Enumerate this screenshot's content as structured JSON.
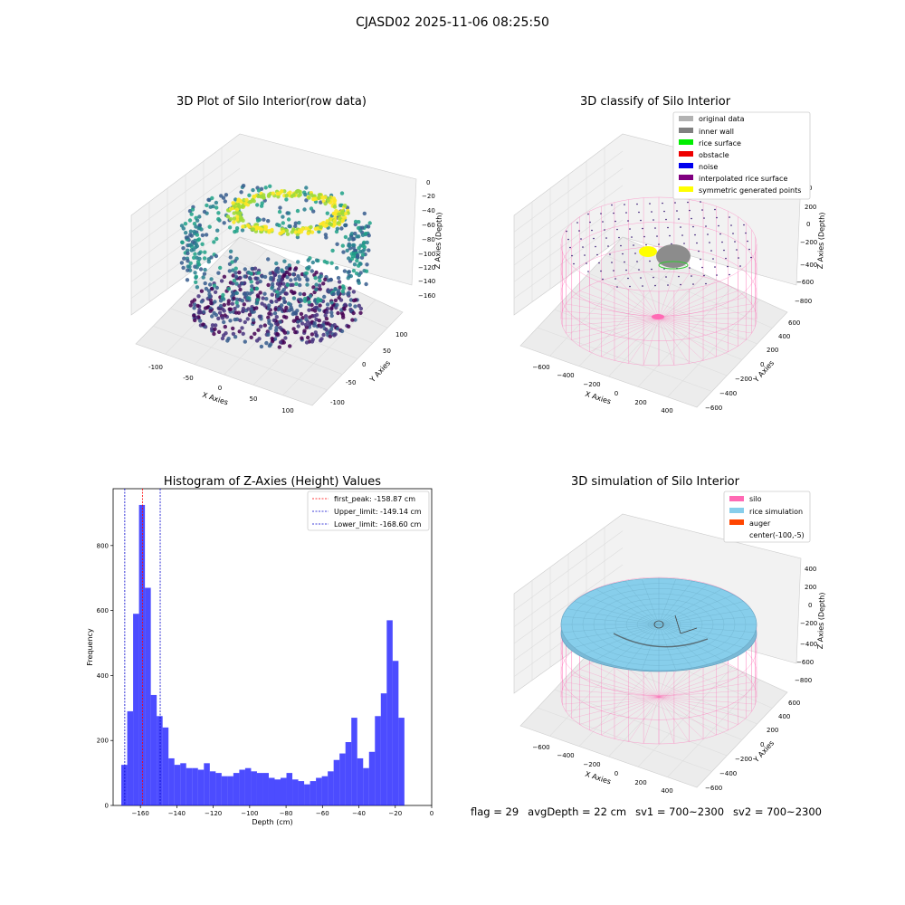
{
  "figure": {
    "suptitle": "CJASD02 2025-11-06 08:25:50"
  },
  "chart_data": [
    {
      "type": "scatter",
      "title": "3D Plot of Silo Interior(row data)",
      "xlabel": "X Axies",
      "ylabel": "Y Axies",
      "zlabel": "Z Axies (Depth)",
      "x_ticks": [
        "-100",
        "-50",
        "0",
        "50",
        "100"
      ],
      "y_ticks": [
        "-100",
        "-50",
        "0",
        "50",
        "100"
      ],
      "z_ticks": [
        "0",
        "−20",
        "−40",
        "−60",
        "−80",
        "−100",
        "−120",
        "−140",
        "−160"
      ],
      "colormap": "viridis"
    },
    {
      "type": "scatter",
      "title": "3D classify of Silo Interior",
      "xlabel": "X Axies",
      "ylabel": "Y Axies",
      "zlabel": "Z Axies (Depth)",
      "x_ticks": [
        "−600",
        "−400",
        "−200",
        "0",
        "200",
        "400"
      ],
      "y_ticks": [
        "−600",
        "−400",
        "−200",
        "0",
        "200",
        "400",
        "600"
      ],
      "z_ticks": [
        "200",
        "0",
        "−200",
        "−400",
        "−600",
        "−800"
      ],
      "z_top_tick": "0",
      "legend": [
        {
          "label": "original data",
          "color": "#b2b2b2"
        },
        {
          "label": "inner wall",
          "color": "#808080"
        },
        {
          "label": "rice surface",
          "color": "#00ee00"
        },
        {
          "label": "obstacle",
          "color": "#ee0000"
        },
        {
          "label": "noise",
          "color": "#0000ee"
        },
        {
          "label": "interpolated rice surface",
          "color": "#800080"
        },
        {
          "label": "symmetric generated points",
          "color": "#ffff00"
        }
      ]
    },
    {
      "type": "bar",
      "title": "Histogram of Z-Axies (Height) Values",
      "xlabel": "Depth (cm)",
      "ylabel": "Frequency",
      "xlim": [
        -175,
        0
      ],
      "ylim": [
        0,
        975
      ],
      "x_ticks": [
        -160,
        -140,
        -120,
        -100,
        -80,
        -60,
        -40,
        -20,
        0
      ],
      "x_tick_labels": [
        "−160",
        "−140",
        "−120",
        "−100",
        "−80",
        "−60",
        "−40",
        "−20",
        "0"
      ],
      "y_ticks": [
        0,
        200,
        400,
        600,
        800
      ],
      "y_tick_labels": [
        "0",
        "200",
        "400",
        "600",
        "800"
      ],
      "bin_start": -170.5,
      "bin_width": 3.24,
      "values": [
        125,
        290,
        590,
        925,
        670,
        340,
        275,
        240,
        145,
        125,
        130,
        115,
        115,
        110,
        130,
        105,
        100,
        90,
        90,
        100,
        110,
        115,
        105,
        100,
        100,
        85,
        80,
        85,
        100,
        80,
        75,
        65,
        75,
        85,
        90,
        105,
        140,
        160,
        195,
        270,
        145,
        115,
        165,
        275,
        345,
        570,
        445,
        270
      ],
      "bar_color": "#0000ff",
      "bar_alpha": 0.7,
      "lines": [
        {
          "label": "first_peak: -158.87 cm",
          "x": -158.87,
          "color": "#ff0000"
        },
        {
          "label": "Upper_limit: -149.14 cm",
          "x": -149.14,
          "color": "#0000cc"
        },
        {
          "label": "Lower_limit: -168.60 cm",
          "x": -168.6,
          "color": "#0000cc"
        }
      ]
    },
    {
      "type": "surface",
      "title": "3D simulation of Silo Interior",
      "xlabel": "X Axies",
      "ylabel": "Y Axies",
      "zlabel": "Z Axies (Depth)",
      "x_ticks": [
        "−600",
        "−400",
        "−200",
        "0",
        "200",
        "400"
      ],
      "y_ticks": [
        "−600",
        "−400",
        "−200",
        "0",
        "200",
        "400",
        "600"
      ],
      "z_ticks": [
        "400",
        "200",
        "0",
        "−200",
        "−400",
        "−600",
        "−800"
      ],
      "legend": [
        {
          "label": "silo",
          "color": "#ff69b4"
        },
        {
          "label": "rice simulation",
          "color": "#87ceeb"
        },
        {
          "label": "auger",
          "color": "#ff4500"
        },
        {
          "label": "center(-100,-5)",
          "color": null
        }
      ]
    }
  ],
  "footer": {
    "flag": "flag = 29",
    "avg_depth": "avgDepth = 22 cm",
    "sv1": "sv1 = 700~2300",
    "sv2": "sv2 = 700~2300"
  }
}
